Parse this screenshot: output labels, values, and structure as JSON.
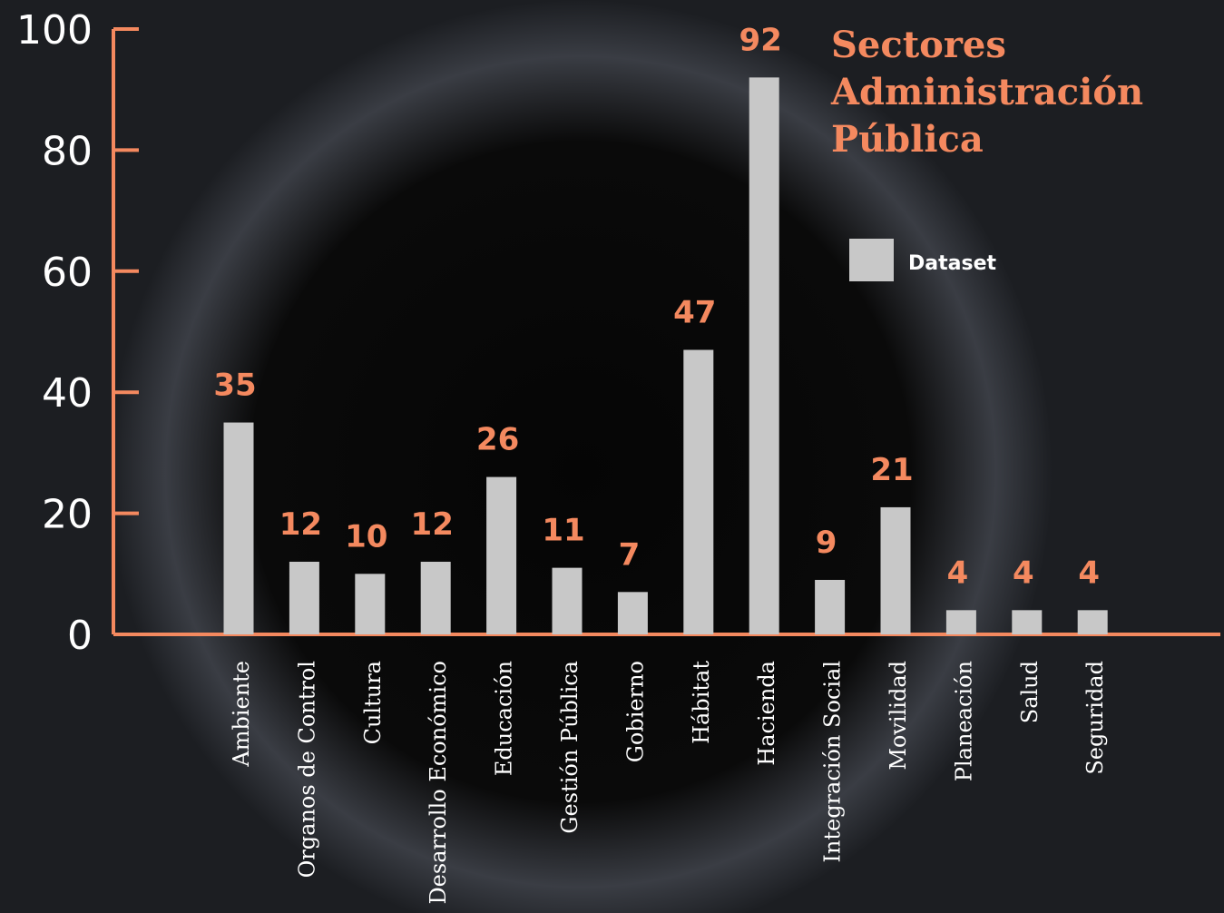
{
  "chart_data": {
    "type": "bar",
    "title": "Sectores Administración Pública",
    "categories": [
      "Ambiente",
      "Organos de Control",
      "Cultura",
      "Desarrollo Económico",
      "Educación",
      "Gestión Pública",
      "Gobierno",
      "Hábitat",
      "Hacienda",
      "Integración Social",
      "Movilidad",
      "Planeación",
      "Salud",
      "Seguridad"
    ],
    "series": [
      {
        "name": "Dataset",
        "color": "#c8c8c8",
        "values": [
          35,
          12,
          10,
          12,
          26,
          11,
          7,
          47,
          92,
          9,
          21,
          4,
          4,
          4
        ]
      }
    ],
    "ylim": [
      0,
      100
    ],
    "yticks": [
      0,
      20,
      40,
      60,
      80,
      100
    ],
    "axis_color": "#f4895f",
    "label_color": "#f4895f"
  }
}
